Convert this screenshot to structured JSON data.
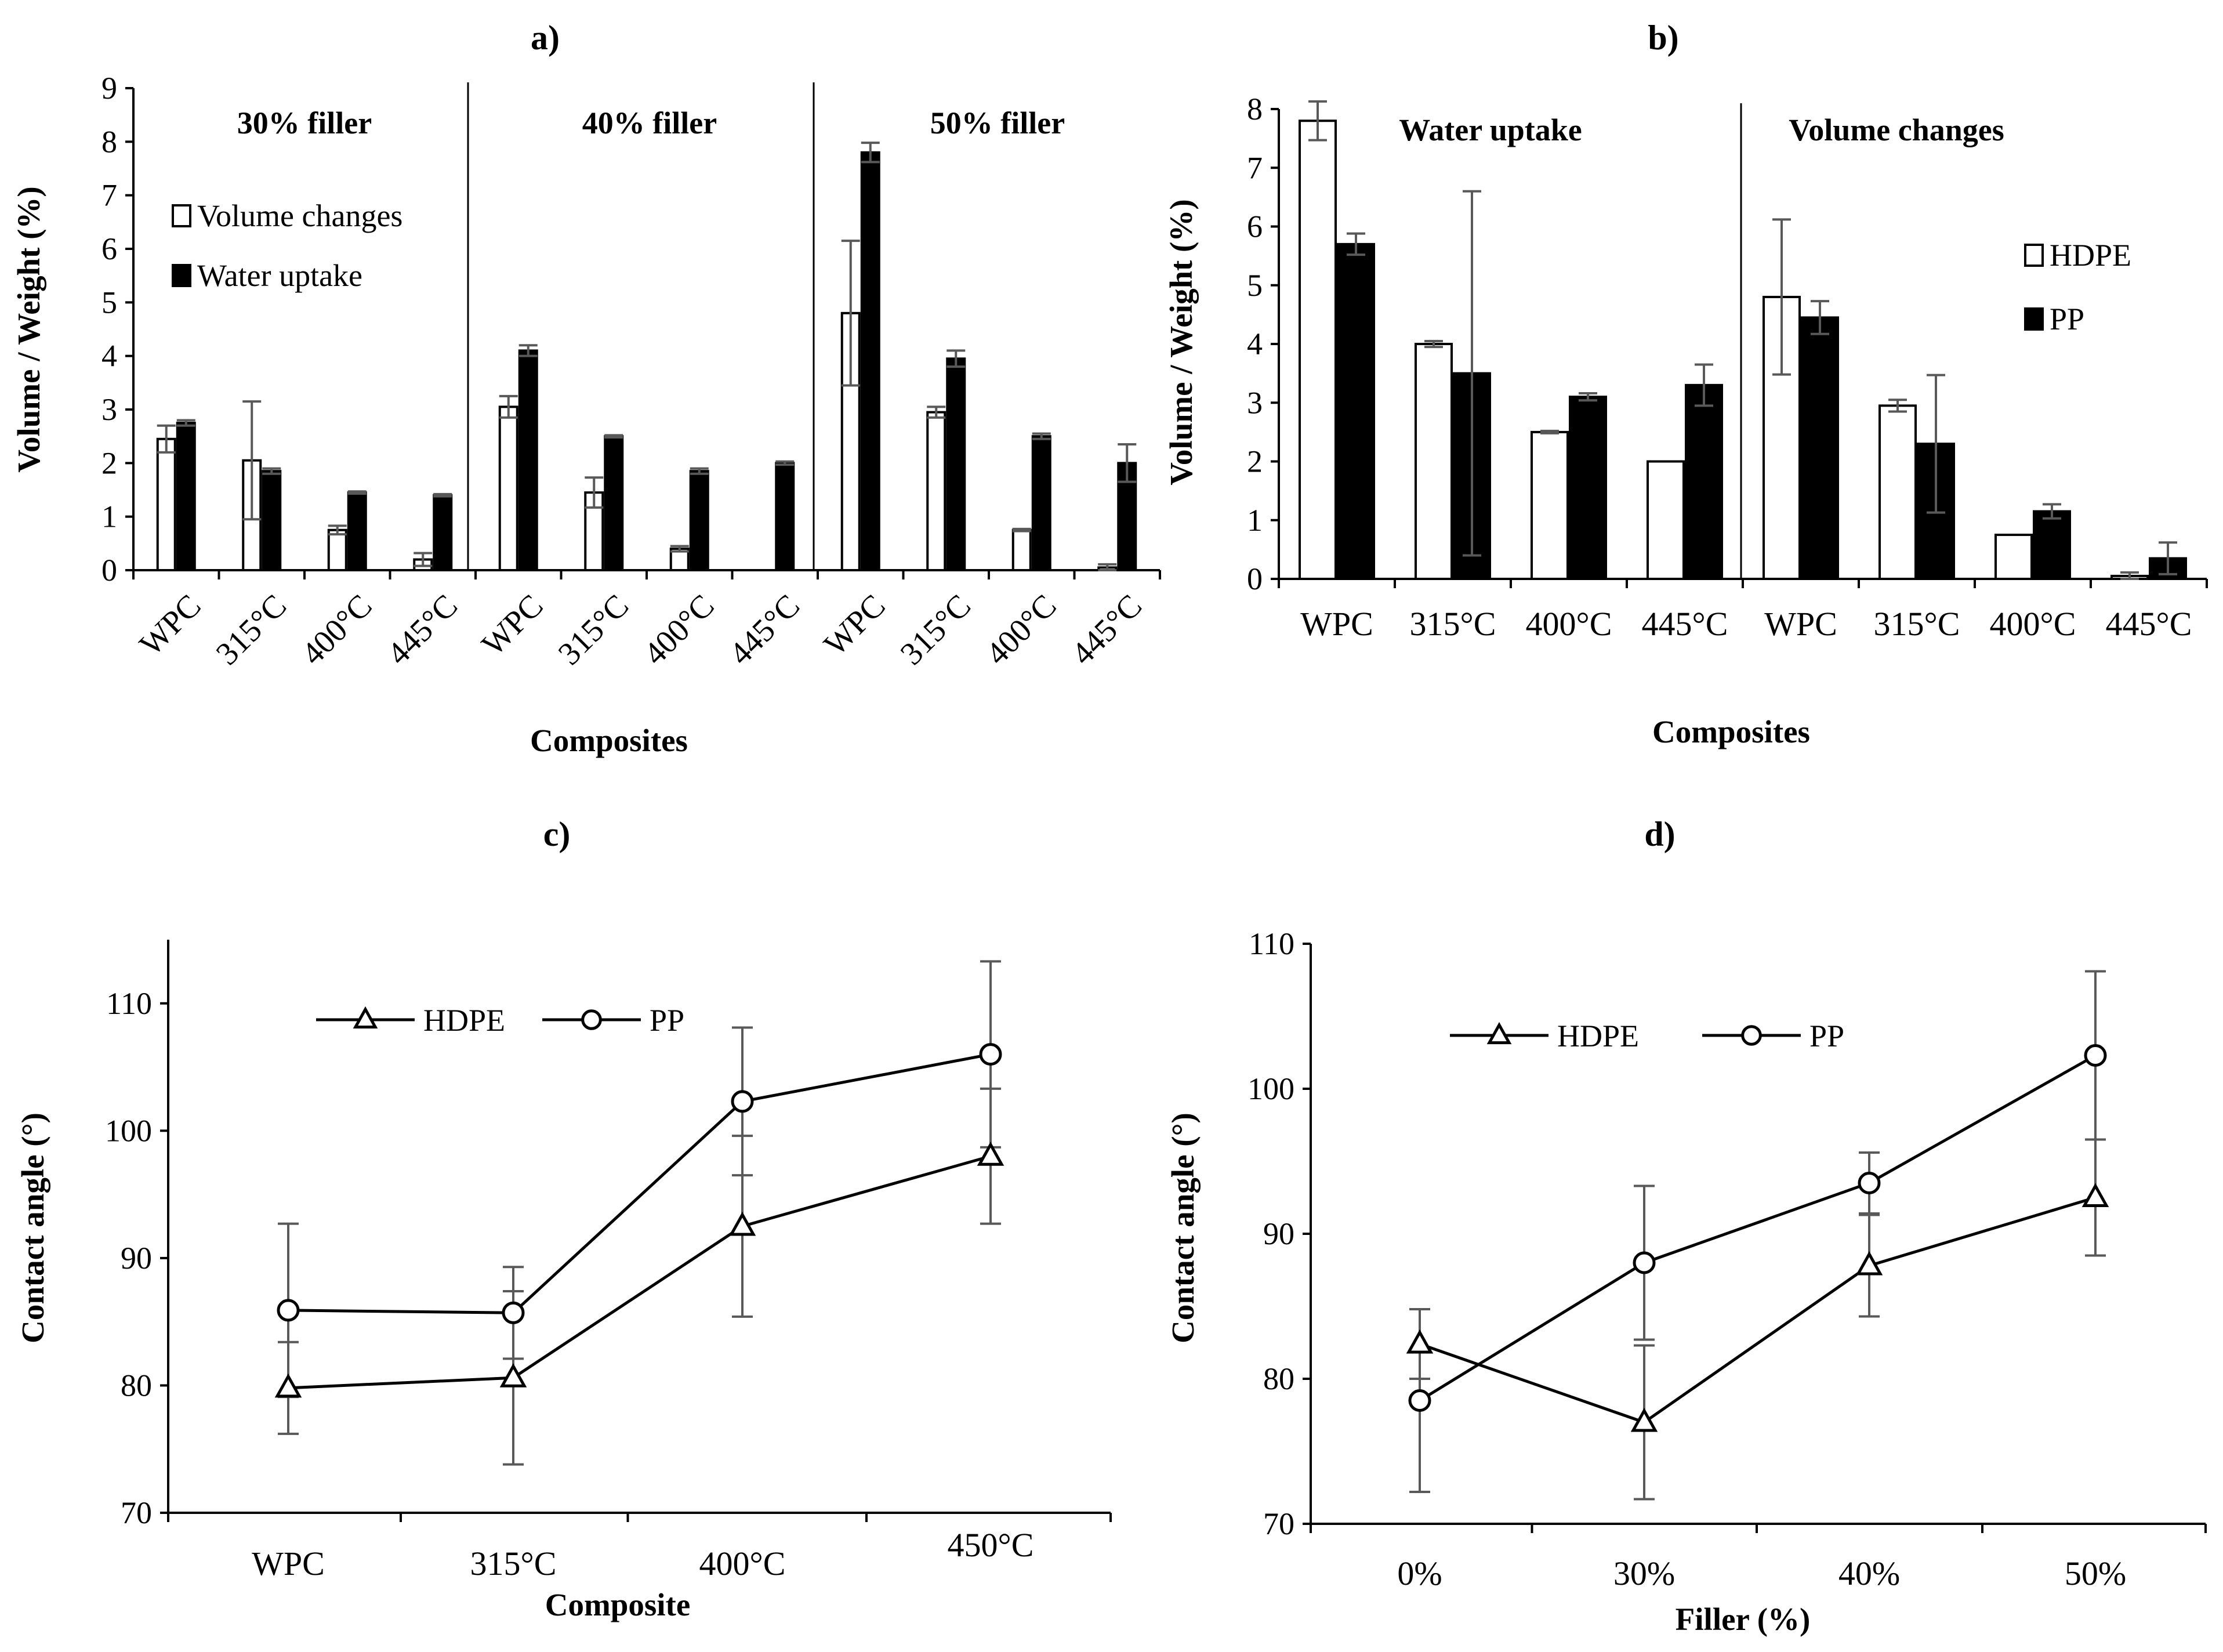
{
  "chart_data": [
    {
      "id": "a",
      "type": "bar",
      "panel_label": "a)",
      "xlabel": "Composites",
      "ylabel": "Volume / Weight (%)",
      "ylim": [
        0,
        9
      ],
      "yticks": [
        "0",
        "1",
        "2",
        "3",
        "4",
        "5",
        "6",
        "7",
        "8",
        "9"
      ],
      "groups": [
        {
          "label": "30% filler",
          "categories": [
            "WPC",
            "315°C",
            "400°C",
            "445°C"
          ]
        },
        {
          "label": "40% filler",
          "categories": [
            "WPC",
            "315°C",
            "400°C",
            "445°C"
          ]
        },
        {
          "label": "50% filler",
          "categories": [
            "WPC",
            "315°C",
            "400°C",
            "445°C"
          ]
        }
      ],
      "series": [
        {
          "name": "Volume changes",
          "fill": "#ffffff",
          "values": [
            2.45,
            2.05,
            0.75,
            0.2,
            3.05,
            1.45,
            0.4,
            0.0,
            4.8,
            2.95,
            0.75,
            0.05
          ],
          "errors": [
            0.25,
            1.1,
            0.08,
            0.12,
            0.2,
            0.28,
            0.05,
            0.0,
            1.35,
            0.1,
            0.02,
            0.06
          ]
        },
        {
          "name": "Water uptake",
          "fill": "#000000",
          "values": [
            2.75,
            1.85,
            1.45,
            1.4,
            4.1,
            2.5,
            1.85,
            2.0,
            7.8,
            3.95,
            2.5,
            2.0
          ],
          "errors": [
            0.05,
            0.05,
            0.02,
            0.02,
            0.1,
            0.02,
            0.05,
            0.03,
            0.18,
            0.15,
            0.05,
            0.35
          ]
        }
      ]
    },
    {
      "id": "b",
      "type": "bar",
      "panel_label": "b)",
      "xlabel": "Composites",
      "ylabel": "Volume / Weight (%)",
      "ylim": [
        0,
        8
      ],
      "yticks": [
        "0",
        "1",
        "2",
        "3",
        "4",
        "5",
        "6",
        "7",
        "8"
      ],
      "groups": [
        {
          "label": "Water uptake",
          "categories": [
            "WPC",
            "315°C",
            "400°C",
            "445°C"
          ]
        },
        {
          "label": "Volume changes",
          "categories": [
            "WPC",
            "315°C",
            "400°C",
            "445°C"
          ]
        }
      ],
      "series": [
        {
          "name": "HDPE",
          "fill": "#ffffff",
          "values": [
            7.8,
            4.0,
            2.5,
            2.0,
            4.8,
            2.95,
            0.75,
            0.05
          ],
          "errors": [
            0.33,
            0.05,
            0.02,
            0.0,
            1.32,
            0.1,
            0.0,
            0.06
          ]
        },
        {
          "name": "PP",
          "fill": "#000000",
          "values": [
            5.7,
            3.5,
            3.1,
            3.3,
            4.45,
            2.3,
            1.15,
            0.35
          ],
          "errors": [
            0.18,
            3.1,
            0.06,
            0.35,
            0.28,
            1.17,
            0.12,
            0.27
          ]
        }
      ]
    },
    {
      "id": "c",
      "type": "line",
      "panel_label": "c)",
      "xlabel": "Composite",
      "ylabel": "Contact angle (°)",
      "ylim": [
        70,
        115
      ],
      "yticks": [
        "70",
        "80",
        "90",
        "100",
        "110"
      ],
      "categories": [
        "WPC",
        "315°C",
        "400°C",
        "450°C"
      ],
      "series": [
        {
          "name": "HDPE",
          "marker": "triangle",
          "values": [
            79.8,
            80.6,
            92.5,
            98.0
          ],
          "errors": [
            3.6,
            6.8,
            7.1,
            5.3
          ]
        },
        {
          "name": "PP",
          "marker": "circle",
          "values": [
            85.9,
            85.7,
            102.3,
            106.0
          ],
          "errors": [
            6.8,
            3.6,
            5.8,
            7.3
          ]
        }
      ]
    },
    {
      "id": "d",
      "type": "line",
      "panel_label": "d)",
      "xlabel": "Filler (%)",
      "ylabel": "Contact angle (°)",
      "ylim": [
        70,
        110
      ],
      "yticks": [
        "70",
        "80",
        "90",
        "100",
        "110"
      ],
      "categories": [
        "0%",
        "30%",
        "40%",
        "50%"
      ],
      "series": [
        {
          "name": "HDPE",
          "marker": "triangle",
          "values": [
            82.4,
            77.0,
            87.8,
            92.5
          ],
          "errors": [
            2.4,
            5.3,
            3.5,
            4.0
          ]
        },
        {
          "name": "PP",
          "marker": "circle",
          "values": [
            78.5,
            88.0,
            93.5,
            102.3
          ],
          "errors": [
            6.3,
            5.3,
            2.1,
            5.8
          ]
        }
      ]
    }
  ]
}
